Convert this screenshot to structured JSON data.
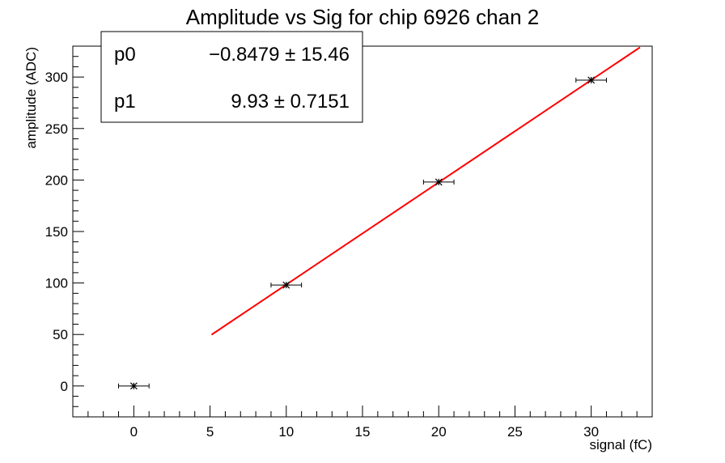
{
  "chart_data": {
    "type": "scatter",
    "title": "Amplitude vs Sig for chip 6926 chan 2",
    "xlabel": "signal (fC)",
    "ylabel": "amplitude (ADC)",
    "xlim": [
      -4,
      34
    ],
    "ylim": [
      -30,
      330
    ],
    "x_ticks": [
      0,
      5,
      10,
      15,
      20,
      25,
      30
    ],
    "y_ticks": [
      0,
      50,
      100,
      150,
      200,
      250,
      300
    ],
    "points": [
      {
        "x": 0,
        "y": 0,
        "xerr": 1
      },
      {
        "x": 10,
        "y": 98,
        "xerr": 1
      },
      {
        "x": 20,
        "y": 198,
        "xerr": 1
      },
      {
        "x": 30,
        "y": 297,
        "xerr": 1
      }
    ],
    "fit": {
      "function": "pol1",
      "x_range": [
        5.1,
        33.2
      ],
      "color": "#ff0000",
      "params": [
        {
          "name": "p0",
          "value_text": "−0.8479 ± 15.46",
          "value": -0.8479,
          "error": 15.46
        },
        {
          "name": "p1",
          "value_text": "9.93 ± 0.7151",
          "value": 9.93,
          "error": 0.7151
        }
      ]
    },
    "grid": false,
    "stats_box_position": "top-left"
  }
}
